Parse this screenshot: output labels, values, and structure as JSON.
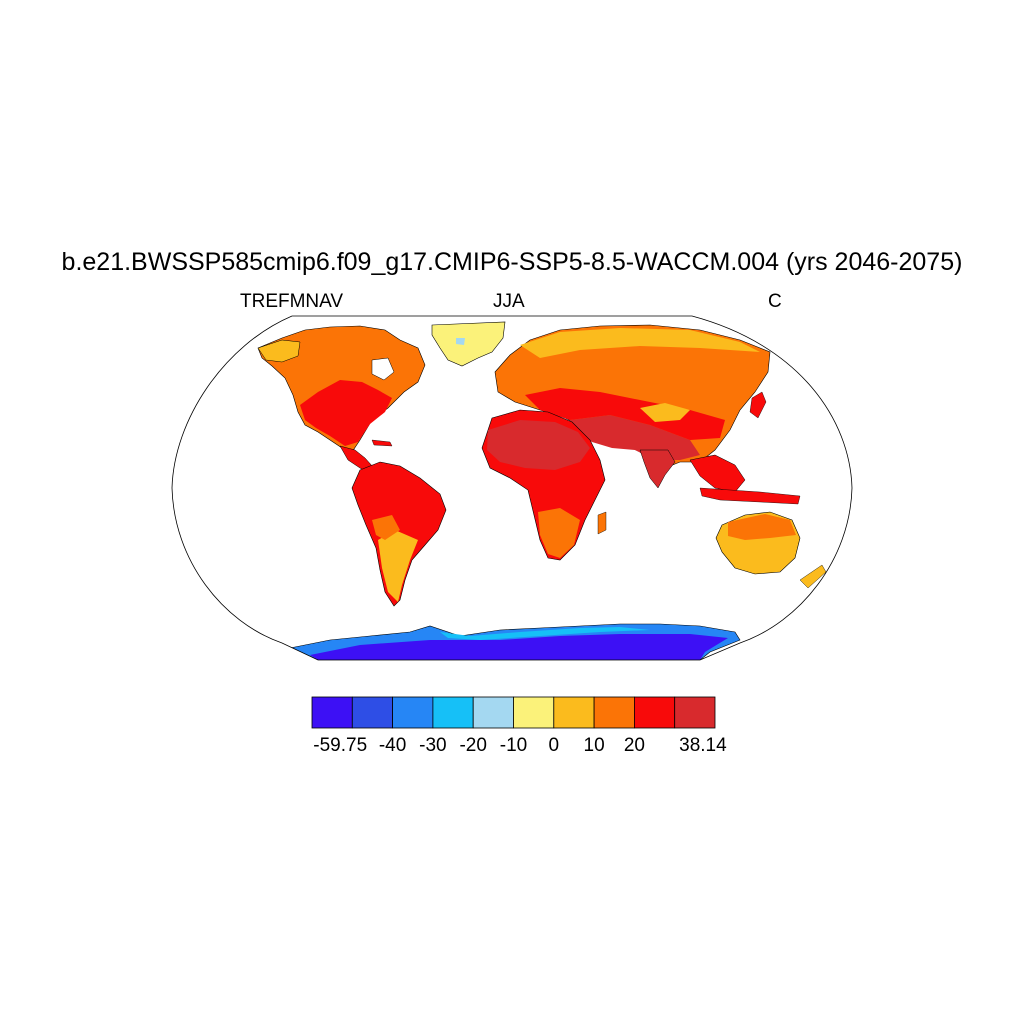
{
  "title": "b.e21.BWSSP585cmip6.f09_g17.CMIP6-SSP5-8.5-WACCM.004 (yrs 2046-2075)",
  "subtitle": {
    "left": "TREFMNAV",
    "center": "JJA",
    "right": "C"
  },
  "colorbar": {
    "colors": [
      "#3d10f5",
      "#2e4ee6",
      "#2686f5",
      "#16c0f7",
      "#a4d8f1",
      "#fbf27a",
      "#fbbb1d",
      "#fb7406",
      "#f80a0a",
      "#d82a2d"
    ],
    "labels": [
      "-59.75",
      "-40",
      "-30",
      "-20",
      "-10",
      "0",
      "10",
      "20",
      "38.14"
    ]
  },
  "map": {
    "projection": "Robinson",
    "ocean_color": "#ffffff",
    "outline_color": "#000000"
  }
}
